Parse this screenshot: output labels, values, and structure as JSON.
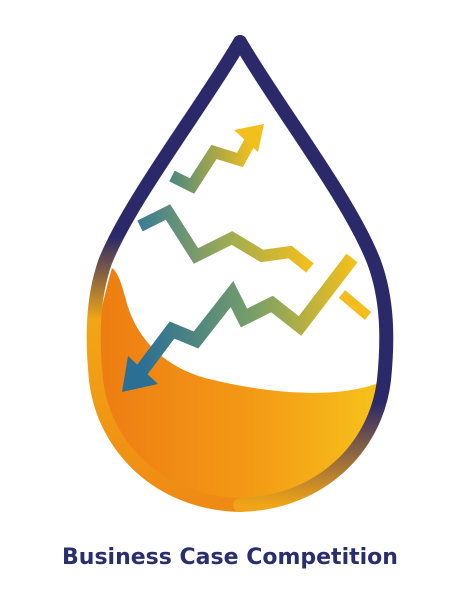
{
  "caption": "Business Case Competition",
  "colors": {
    "drop_outline": "#2b2969",
    "orange_dark": "#ee7f13",
    "orange_light": "#f8c116",
    "arrow_teal": "#2f7095",
    "arrow_yellow": "#f2bd1d"
  },
  "icons": [
    "oil-drop-icon",
    "trend-up-arrow-icon",
    "trend-down-arrow-icon"
  ]
}
